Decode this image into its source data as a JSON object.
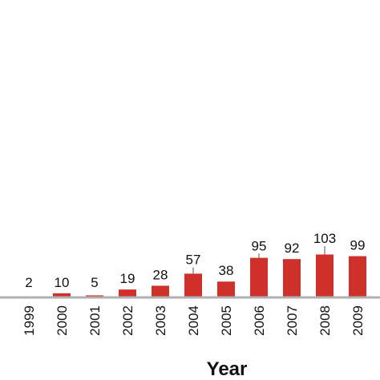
{
  "chart_data": {
    "type": "bar",
    "categories": [
      "1999",
      "2000",
      "2001",
      "2002",
      "2003",
      "2004",
      "2005",
      "2006",
      "2007",
      "2008",
      "2009"
    ],
    "values": [
      2,
      10,
      5,
      19,
      28,
      57,
      38,
      95,
      92,
      103,
      99
    ],
    "error_upper": [
      0,
      0,
      0,
      0,
      0,
      15,
      0,
      10,
      0,
      20,
      0
    ],
    "value_labels": [
      "2",
      "10",
      "5",
      "19",
      "28",
      "57",
      "38",
      "95",
      "92",
      "103",
      "99"
    ],
    "xlabel": "Year",
    "ylabel": "",
    "ylim": [
      0,
      120
    ],
    "grid": false,
    "legend": "none",
    "bar_color": "#d0302a",
    "axis_color": "#b0b0b0",
    "error_bar_color": "#a8a8a8"
  }
}
